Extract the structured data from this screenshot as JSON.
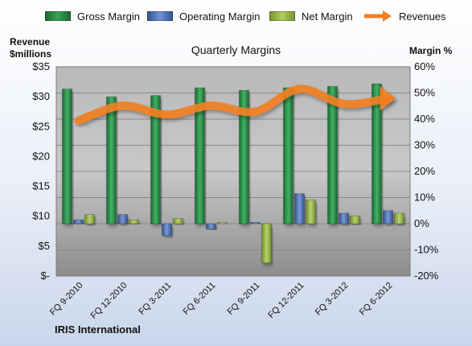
{
  "chart_data": {
    "type": "bar",
    "title": "Quarterly Margins",
    "company": "IRIS International",
    "left_axis_title": [
      "Revenue",
      "$millions"
    ],
    "right_axis_title": "Margin %",
    "categories": [
      "FQ 9-2010",
      "FQ 12-2010",
      "FQ 3-2011",
      "FQ 6-2011",
      "FQ 9-2011",
      "FQ 12-2011",
      "FQ 3-2012",
      "FQ 6-2012"
    ],
    "left_axis": {
      "min": 0,
      "max": 35,
      "step": 5,
      "tick_labels": [
        "$-",
        "$5",
        "$10",
        "$15",
        "$20",
        "$25",
        "$30",
        "$35"
      ]
    },
    "right_axis": {
      "min": -20,
      "max": 60,
      "step": 10,
      "tick_labels": [
        "-20%",
        "-10%",
        "0%",
        "10%",
        "20%",
        "30%",
        "40%",
        "50%",
        "60%"
      ]
    },
    "series": [
      {
        "name": "Gross Margin",
        "axis": "right",
        "kind": "bar",
        "color": "#1f7a3a",
        "values": [
          51.5,
          48.5,
          49,
          52,
          51,
          52,
          52.5,
          53.5
        ]
      },
      {
        "name": "Operating Margin",
        "axis": "right",
        "kind": "bar",
        "color": "#3f67b0",
        "values": [
          1.5,
          3.5,
          -4.5,
          -2,
          0.5,
          11.5,
          4,
          5
        ]
      },
      {
        "name": "Net Margin",
        "axis": "right",
        "kind": "bar",
        "color": "#8ead3c",
        "values": [
          3.5,
          1.5,
          2,
          0.5,
          -15,
          9,
          3,
          4
        ]
      },
      {
        "name": "Revenues",
        "axis": "left",
        "kind": "line",
        "color": "#f07f24",
        "values": [
          26,
          28.5,
          27,
          28.5,
          27.5,
          31.3,
          28.8,
          29.7
        ]
      }
    ],
    "grid": true,
    "legend_position": "top"
  }
}
